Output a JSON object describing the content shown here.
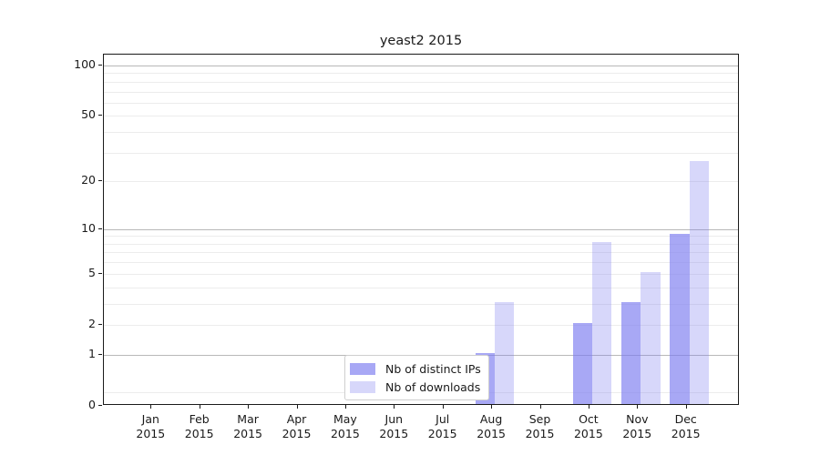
{
  "title": "yeast2 2015",
  "chart_data": {
    "type": "bar",
    "title": "yeast2 2015",
    "categories": [
      "Jan 2015",
      "Feb 2015",
      "Mar 2015",
      "Apr 2015",
      "May 2015",
      "Jun 2015",
      "Jul 2015",
      "Aug 2015",
      "Sep 2015",
      "Oct 2015",
      "Nov 2015",
      "Dec 2015"
    ],
    "month_labels": [
      "Jan",
      "Feb",
      "Mar",
      "Apr",
      "May",
      "Jun",
      "Jul",
      "Aug",
      "Sep",
      "Oct",
      "Nov",
      "Dec"
    ],
    "year_label": "2015",
    "series": [
      {
        "name": "Nb of distinct IPs",
        "color": "rgba(123,123,240,0.66)",
        "solid_color": "#aaaaf5",
        "values": [
          0,
          0,
          0,
          0,
          0,
          0,
          0,
          1,
          0,
          2,
          3,
          9
        ]
      },
      {
        "name": "Nb of downloads",
        "color": "rgba(123,123,240,0.30)",
        "solid_color": "#d9d9f8",
        "values": [
          0,
          0,
          0,
          0,
          0,
          0,
          0,
          3,
          0,
          8,
          5,
          26
        ]
      }
    ],
    "xlabel": "",
    "ylabel": "",
    "yscale": "log1p",
    "ylim": [
      0,
      116
    ],
    "y_tick_values": [
      0,
      1,
      2,
      5,
      10,
      20,
      50,
      100
    ],
    "y_tick_labels": [
      "0",
      "1",
      "2",
      "5",
      "10",
      "20",
      "50",
      "100"
    ],
    "y_major_gridlines": [
      1,
      10,
      100
    ],
    "y_minor_gridlines": [
      0.2,
      2,
      3,
      4,
      5,
      6,
      7,
      8,
      9,
      20,
      30,
      40,
      50,
      60,
      70,
      80,
      90
    ],
    "grid": true,
    "legend_position": "lower center"
  },
  "colors": {
    "background": "#ffffff",
    "bar_distinct_ips": "#aaaaf5",
    "bar_downloads": "#d9d9f8",
    "major_grid": "#b8b8b8",
    "minor_grid": "#ececec",
    "spine": "#1a1a1a",
    "text": "#1a1a1a",
    "legend_border": "#cfcfcf"
  }
}
